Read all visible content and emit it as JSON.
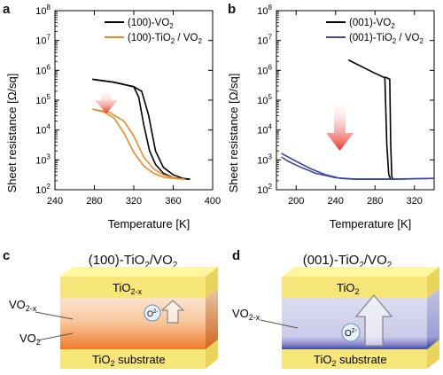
{
  "panels": {
    "a": {
      "letter": "a"
    },
    "b": {
      "letter": "b"
    },
    "c": {
      "letter": "c",
      "title_main": "(100)-TiO",
      "title_sub1": "2",
      "title_mid": "/VO",
      "title_sub2": "2",
      "layer_top": "TiO",
      "layer_top_sub": "2-x",
      "label_vo2x": "VO",
      "label_vo2x_sub": "2-x",
      "label_vo2": "VO",
      "label_vo2_sub": "2",
      "substrate": "TiO",
      "substrate_sub": "2",
      "substrate_rest": " substrate",
      "ion": "O",
      "ion_sup": "2-"
    },
    "d": {
      "letter": "d",
      "title_main": "(001)-TiO",
      "title_sub1": "2",
      "title_mid": "/VO",
      "title_sub2": "2",
      "layer_top": "TiO",
      "layer_top_sub": "2",
      "label_vo2x": "VO",
      "label_vo2x_sub": "2-x",
      "substrate": "TiO",
      "substrate_sub": "2",
      "substrate_rest": " substrate",
      "ion": "O",
      "ion_sup": "2-"
    }
  },
  "colors": {
    "black": "#000000",
    "orange": "#f08a24",
    "blue": "#3b4aa0",
    "arrow_red": "#e8342b"
  },
  "chart_data": [
    {
      "type": "line",
      "panel": "a",
      "xlabel": "Temperature [K]",
      "ylabel": "Sheet resistance [Ω/sq]",
      "xlim": [
        240,
        400
      ],
      "ylim_log10": [
        2,
        8
      ],
      "log_y": true,
      "x_ticks": [
        "240",
        "280",
        "320",
        "360",
        "400"
      ],
      "y_ticks_log10": [
        2,
        3,
        4,
        5,
        6,
        7,
        8
      ],
      "legend_position": "top-right",
      "series": [
        {
          "name": "(100)-VO",
          "name_sub": "2",
          "color": "#000000",
          "segments": [
            [
              [
                278,
                5.7
              ],
              [
                300,
                5.6
              ],
              [
                320,
                5.45
              ],
              [
                328,
                5.3
              ],
              [
                335,
                4.5
              ],
              [
                342,
                3.3
              ],
              [
                350,
                2.75
              ],
              [
                360,
                2.5
              ],
              [
                370,
                2.38
              ],
              [
                377,
                2.35
              ]
            ],
            [
              [
                377,
                2.35
              ],
              [
                360,
                2.4
              ],
              [
                350,
                2.55
              ],
              [
                342,
                2.85
              ],
              [
                336,
                3.3
              ],
              [
                330,
                4.2
              ],
              [
                325,
                5.1
              ],
              [
                320,
                5.45
              ],
              [
                300,
                5.6
              ],
              [
                278,
                5.7
              ]
            ]
          ]
        },
        {
          "name": "(100)-TiO",
          "name_sub": "2",
          "name_rest": " / VO",
          "name_sub2": "2",
          "color": "#f08a24",
          "segments": [
            [
              [
                278,
                4.7
              ],
              [
                295,
                4.6
              ],
              [
                310,
                4.3
              ],
              [
                320,
                3.8
              ],
              [
                330,
                3.1
              ],
              [
                340,
                2.7
              ],
              [
                350,
                2.5
              ],
              [
                360,
                2.4
              ],
              [
                372,
                2.35
              ]
            ],
            [
              [
                372,
                2.35
              ],
              [
                360,
                2.38
              ],
              [
                350,
                2.42
              ],
              [
                340,
                2.55
              ],
              [
                330,
                2.8
              ],
              [
                320,
                3.25
              ],
              [
                310,
                3.9
              ],
              [
                300,
                4.4
              ],
              [
                290,
                4.6
              ],
              [
                278,
                4.7
              ]
            ]
          ]
        }
      ]
    },
    {
      "type": "line",
      "panel": "b",
      "xlabel": "Temperature [K]",
      "ylabel": "Sheet resistance [Ω/sq]",
      "xlim": [
        180,
        340
      ],
      "ylim_log10": [
        2,
        8
      ],
      "log_y": true,
      "x_ticks": [
        "200",
        "240",
        "280",
        "320"
      ],
      "y_ticks_log10": [
        2,
        3,
        4,
        5,
        6,
        7,
        8
      ],
      "legend_position": "top-right",
      "series": [
        {
          "name": "(001)-VO",
          "name_sub": "2",
          "color": "#000000",
          "segments": [
            [
              [
                253,
                6.35
              ],
              [
                280,
                5.9
              ],
              [
                290,
                5.75
              ],
              [
                292,
                3.5
              ],
              [
                294,
                2.5
              ],
              [
                296,
                2.35
              ],
              [
                298,
                2.35
              ]
            ],
            [
              [
                298,
                2.35
              ],
              [
                297,
                2.45
              ],
              [
                296,
                3.5
              ],
              [
                295,
                5.7
              ],
              [
                290,
                5.78
              ]
            ]
          ]
        },
        {
          "name": "(001)-TiO",
          "name_sub": "2",
          "name_rest": " / VO",
          "name_sub2": "2",
          "color": "#3b4aa0",
          "segments": [
            [
              [
                185,
                3.22
              ],
              [
                200,
                2.95
              ],
              [
                215,
                2.7
              ],
              [
                230,
                2.5
              ],
              [
                245,
                2.38
              ],
              [
                260,
                2.35
              ],
              [
                300,
                2.35
              ],
              [
                340,
                2.38
              ]
            ],
            [
              [
                340,
                2.38
              ],
              [
                300,
                2.36
              ],
              [
                260,
                2.36
              ],
              [
                240,
                2.4
              ],
              [
                220,
                2.55
              ],
              [
                205,
                2.75
              ],
              [
                192,
                2.95
              ],
              [
                185,
                3.1
              ]
            ]
          ]
        }
      ]
    }
  ]
}
